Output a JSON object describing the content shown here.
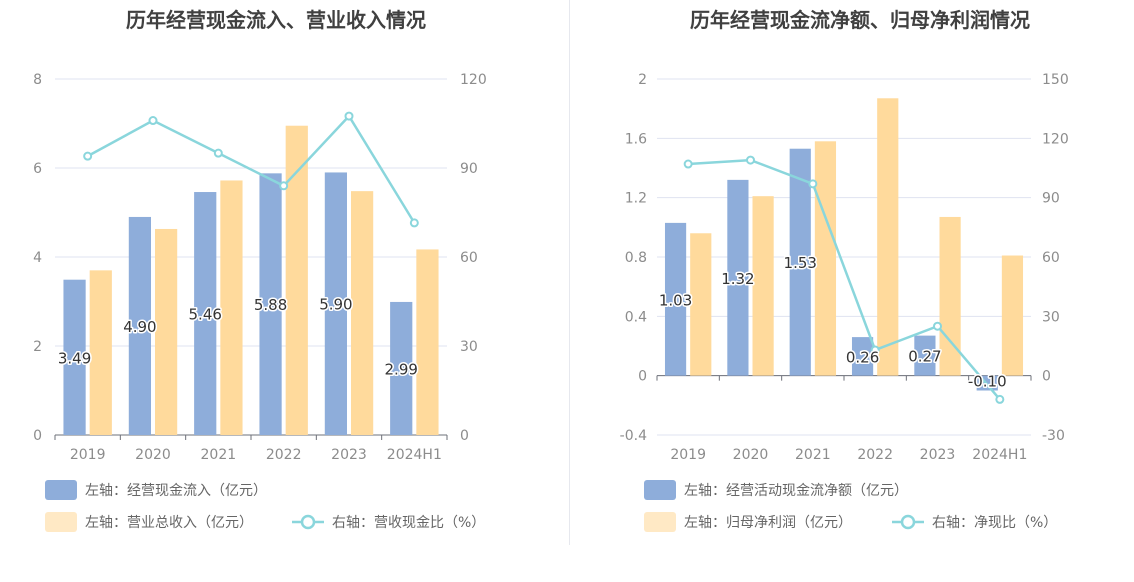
{
  "colors": {
    "bar_primary": "#8eadda",
    "bar_secondary": "#ffda9c",
    "line": "#8ad6dc",
    "grid": "#dfe3f0",
    "axis_text": "#8c8c8c",
    "title": "#404040",
    "legend_text": "#666666"
  },
  "chart_data": [
    {
      "type": "bar",
      "title": "历年经营现金流入、营业收入情况",
      "categories": [
        "2019",
        "2020",
        "2021",
        "2022",
        "2023",
        "2024H1"
      ],
      "left_axis": {
        "ylim": [
          0,
          8
        ],
        "ticks": [
          "0",
          "2",
          "4",
          "6",
          "8"
        ]
      },
      "right_axis": {
        "ylim": [
          0,
          120
        ],
        "ticks": [
          "0",
          "30",
          "60",
          "90",
          "120"
        ]
      },
      "grid": true,
      "legend_position": "bottom-left",
      "series": [
        {
          "name": "左轴：经营现金流入（亿元）",
          "kind": "bar",
          "axis": "left",
          "values": [
            3.49,
            4.9,
            5.46,
            5.88,
            5.9,
            2.99
          ],
          "labels": [
            "3.49",
            "4.90",
            "5.46",
            "5.88",
            "5.90",
            "2.99"
          ]
        },
        {
          "name": "左轴：营业总收入（亿元）",
          "kind": "bar",
          "axis": "left",
          "values": [
            3.7,
            4.63,
            5.72,
            6.95,
            5.48,
            4.17
          ]
        },
        {
          "name": "右轴：营收现金比（%）",
          "kind": "line",
          "axis": "right",
          "values": [
            94,
            106,
            95,
            84,
            107.5,
            71.5
          ]
        }
      ]
    },
    {
      "type": "bar",
      "title": "历年经营现金流净额、归母净利润情况",
      "categories": [
        "2019",
        "2020",
        "2021",
        "2022",
        "2023",
        "2024H1"
      ],
      "left_axis": {
        "ylim": [
          -0.4,
          2
        ],
        "ticks": [
          "-0.4",
          "0",
          "0.4",
          "0.8",
          "1.2",
          "1.6",
          "2"
        ]
      },
      "right_axis": {
        "ylim": [
          -30,
          150
        ],
        "ticks": [
          "-30",
          "0",
          "30",
          "60",
          "90",
          "120",
          "150"
        ]
      },
      "grid": true,
      "legend_position": "bottom-left",
      "series": [
        {
          "name": "左轴：经营活动现金流净额（亿元）",
          "kind": "bar",
          "axis": "left",
          "values": [
            1.03,
            1.32,
            1.53,
            0.26,
            0.27,
            -0.1
          ],
          "labels": [
            "1.03",
            "1.32",
            "1.53",
            "0.26",
            "0.27",
            "-0.10"
          ]
        },
        {
          "name": "左轴：归母净利润（亿元）",
          "kind": "bar",
          "axis": "left",
          "values": [
            0.96,
            1.21,
            1.58,
            1.87,
            1.07,
            0.81
          ]
        },
        {
          "name": "右轴：净现比（%）",
          "kind": "line",
          "axis": "right",
          "values": [
            107,
            109,
            97,
            13,
            25,
            -12
          ]
        }
      ]
    }
  ]
}
